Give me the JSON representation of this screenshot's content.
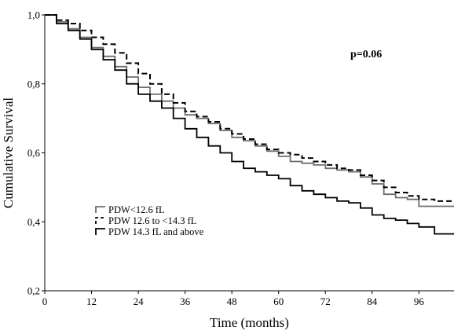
{
  "chart_data": {
    "type": "line",
    "step": true,
    "title": "",
    "xlabel": "Time (months)",
    "ylabel": "Cumulative Survival",
    "xlim": [
      0,
      105
    ],
    "ylim": [
      0.2,
      1.0
    ],
    "x_ticks": [
      0,
      12,
      24,
      36,
      48,
      60,
      72,
      84,
      96
    ],
    "x_tick_labels": [
      "0",
      "12",
      "24",
      "36",
      "48",
      "60",
      "72",
      "84",
      "96"
    ],
    "y_ticks": [
      0.2,
      0.4,
      0.6,
      0.8,
      1.0
    ],
    "y_tick_labels": [
      "0,2",
      "0,4",
      "0,6",
      "0,8",
      "1,0"
    ],
    "grid": false,
    "legend_position": "lower-left",
    "annotation": "p=0.06",
    "series": [
      {
        "name": "PDW<12.6 fL",
        "color": "#6e6e6e",
        "dash": "solid",
        "points": [
          [
            0,
            1.0
          ],
          [
            3,
            0.98
          ],
          [
            6,
            0.96
          ],
          [
            9,
            0.935
          ],
          [
            12,
            0.905
          ],
          [
            15,
            0.88
          ],
          [
            18,
            0.85
          ],
          [
            21,
            0.82
          ],
          [
            24,
            0.79
          ],
          [
            27,
            0.77
          ],
          [
            30,
            0.75
          ],
          [
            33,
            0.73
          ],
          [
            36,
            0.71
          ],
          [
            39,
            0.7
          ],
          [
            42,
            0.685
          ],
          [
            45,
            0.665
          ],
          [
            48,
            0.645
          ],
          [
            51,
            0.635
          ],
          [
            54,
            0.62
          ],
          [
            57,
            0.605
          ],
          [
            60,
            0.59
          ],
          [
            63,
            0.575
          ],
          [
            66,
            0.57
          ],
          [
            69,
            0.565
          ],
          [
            72,
            0.555
          ],
          [
            75,
            0.55
          ],
          [
            78,
            0.545
          ],
          [
            81,
            0.53
          ],
          [
            84,
            0.51
          ],
          [
            87,
            0.48
          ],
          [
            90,
            0.47
          ],
          [
            93,
            0.465
          ],
          [
            96,
            0.445
          ],
          [
            100,
            0.445
          ],
          [
            105,
            0.445
          ]
        ]
      },
      {
        "name": "PDW 12.6 to <14.3 fL",
        "color": "#000000",
        "dash": "dashed",
        "points": [
          [
            0,
            1.0
          ],
          [
            3,
            0.985
          ],
          [
            6,
            0.975
          ],
          [
            9,
            0.955
          ],
          [
            12,
            0.935
          ],
          [
            15,
            0.915
          ],
          [
            18,
            0.89
          ],
          [
            21,
            0.86
          ],
          [
            24,
            0.83
          ],
          [
            27,
            0.8
          ],
          [
            30,
            0.77
          ],
          [
            33,
            0.745
          ],
          [
            36,
            0.72
          ],
          [
            39,
            0.705
          ],
          [
            42,
            0.69
          ],
          [
            45,
            0.67
          ],
          [
            48,
            0.655
          ],
          [
            51,
            0.64
          ],
          [
            54,
            0.625
          ],
          [
            57,
            0.61
          ],
          [
            60,
            0.6
          ],
          [
            63,
            0.595
          ],
          [
            66,
            0.585
          ],
          [
            69,
            0.575
          ],
          [
            72,
            0.565
          ],
          [
            75,
            0.555
          ],
          [
            78,
            0.55
          ],
          [
            81,
            0.535
          ],
          [
            84,
            0.52
          ],
          [
            87,
            0.5
          ],
          [
            90,
            0.485
          ],
          [
            93,
            0.475
          ],
          [
            96,
            0.465
          ],
          [
            100,
            0.46
          ],
          [
            105,
            0.46
          ]
        ]
      },
      {
        "name": "PDW 14.3 fL and above",
        "color": "#000000",
        "dash": "solid",
        "points": [
          [
            0,
            1.0
          ],
          [
            3,
            0.975
          ],
          [
            6,
            0.955
          ],
          [
            9,
            0.93
          ],
          [
            12,
            0.9
          ],
          [
            15,
            0.87
          ],
          [
            18,
            0.84
          ],
          [
            21,
            0.8
          ],
          [
            24,
            0.77
          ],
          [
            27,
            0.75
          ],
          [
            30,
            0.73
          ],
          [
            33,
            0.7
          ],
          [
            36,
            0.67
          ],
          [
            39,
            0.645
          ],
          [
            42,
            0.62
          ],
          [
            45,
            0.6
          ],
          [
            48,
            0.575
          ],
          [
            51,
            0.555
          ],
          [
            54,
            0.545
          ],
          [
            57,
            0.535
          ],
          [
            60,
            0.525
          ],
          [
            63,
            0.505
          ],
          [
            66,
            0.49
          ],
          [
            69,
            0.48
          ],
          [
            72,
            0.47
          ],
          [
            75,
            0.46
          ],
          [
            78,
            0.455
          ],
          [
            81,
            0.44
          ],
          [
            84,
            0.42
          ],
          [
            87,
            0.41
          ],
          [
            90,
            0.405
          ],
          [
            93,
            0.395
          ],
          [
            96,
            0.385
          ],
          [
            100,
            0.365
          ],
          [
            105,
            0.365
          ]
        ]
      }
    ]
  }
}
